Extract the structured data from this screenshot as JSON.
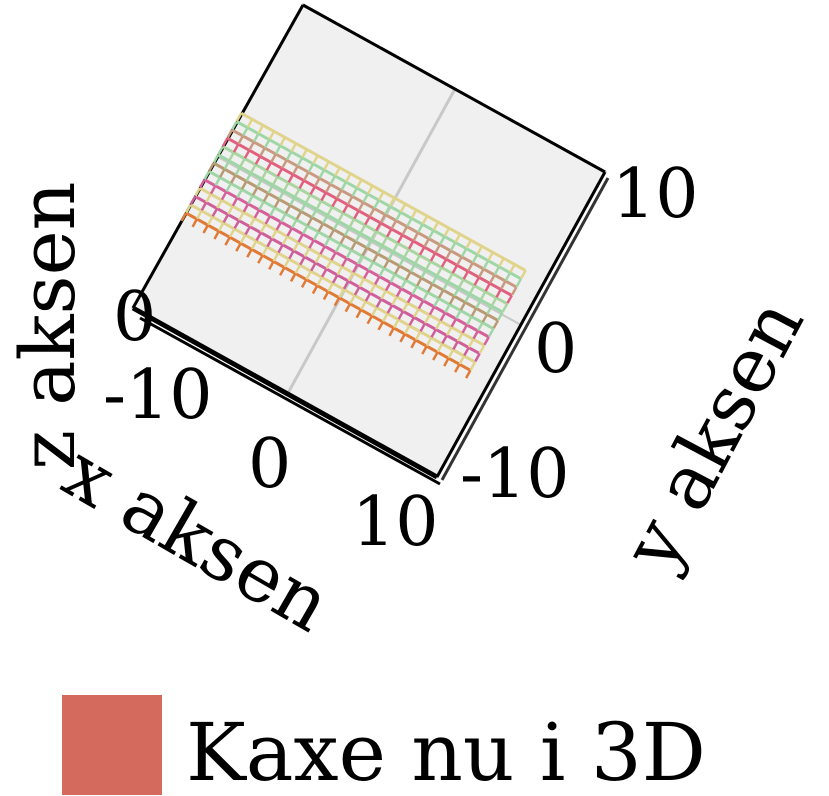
{
  "chart_data": {
    "type": "surface3d",
    "title": "",
    "xlabel": "x aksen",
    "ylabel": "y aksen",
    "zlabel": "z aksen",
    "x_ticks": [
      "-10",
      "0",
      "10"
    ],
    "y_ticks": [
      "-10",
      "0",
      "10"
    ],
    "z_ticks": [
      "0"
    ],
    "xlim": [
      -10,
      10
    ],
    "ylim": [
      -10,
      10
    ],
    "grid": true,
    "legend": {
      "position": "bottom",
      "entries": [
        {
          "name": "Kaxe nu i 3D",
          "color": "#d4695e"
        }
      ]
    },
    "series": [
      {
        "name": "Kaxe nu i 3D",
        "band_colors": [
          "#e07a36",
          "#e0d48c",
          "#cf5f9a",
          "#e0d48c",
          "#d6609a",
          "#9fd6a6",
          "#b89a74",
          "#9fd6a6",
          "#a9d6a0",
          "#e0607e",
          "#c99a80",
          "#9fd6a6",
          "#e0d48c"
        ]
      }
    ]
  }
}
